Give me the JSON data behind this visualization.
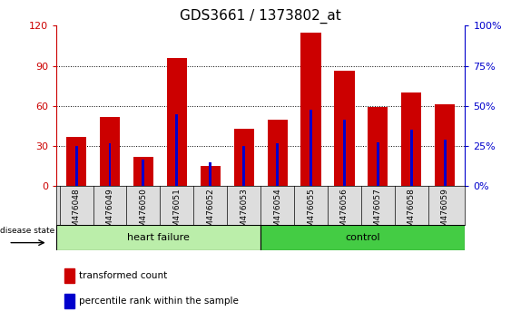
{
  "title": "GDS3661 / 1373802_at",
  "categories": [
    "GSM476048",
    "GSM476049",
    "GSM476050",
    "GSM476051",
    "GSM476052",
    "GSM476053",
    "GSM476054",
    "GSM476055",
    "GSM476056",
    "GSM476057",
    "GSM476058",
    "GSM476059"
  ],
  "red_values": [
    37,
    52,
    22,
    96,
    15,
    43,
    50,
    115,
    86,
    59,
    70,
    61
  ],
  "blue_values": [
    30,
    32,
    20,
    54,
    18,
    30,
    32,
    57,
    50,
    33,
    42,
    35
  ],
  "red_color": "#cc0000",
  "blue_color": "#0000cc",
  "ylim_left": [
    0,
    120
  ],
  "ylim_right": [
    0,
    100
  ],
  "yticks_left": [
    0,
    30,
    60,
    90,
    120
  ],
  "ytick_labels_right": [
    "0%",
    "25%",
    "50%",
    "75%",
    "100%"
  ],
  "heart_failure_color": "#bbeeaa",
  "control_color": "#44cc44",
  "disease_state_label": "disease state",
  "legend_red_label": "transformed count",
  "legend_blue_label": "percentile rank within the sample",
  "title_fontsize": 11,
  "bar_width": 0.6,
  "blue_bar_width": 0.08
}
